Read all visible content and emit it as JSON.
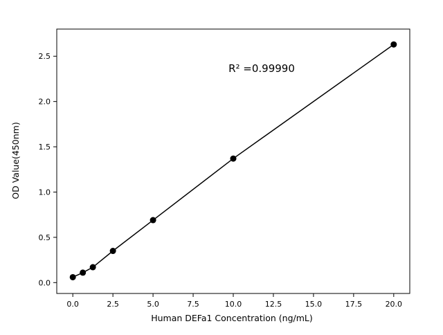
{
  "figure": {
    "background": "#ffffff"
  },
  "chart_data": {
    "type": "scatter",
    "x": [
      0,
      0.625,
      1.25,
      2.5,
      5,
      10,
      20
    ],
    "y": [
      0.06,
      0.11,
      0.17,
      0.35,
      0.69,
      1.37,
      2.63
    ],
    "title": "",
    "xlabel": "Human DEFa1 Concentration (ng/mL)",
    "ylabel": "OD Value(450nm)",
    "annotation": "R² =0.99990",
    "xlim": [
      -1,
      21
    ],
    "ylim": [
      -0.12,
      2.8
    ],
    "x_ticks": [
      0.0,
      2.5,
      5.0,
      7.5,
      10.0,
      12.5,
      15.0,
      17.5,
      20.0
    ],
    "x_tick_labels": [
      "0.0",
      "2.5",
      "5.0",
      "7.5",
      "10.0",
      "12.5",
      "15.0",
      "17.5",
      "20.0"
    ],
    "y_ticks": [
      0.0,
      0.5,
      1.0,
      1.5,
      2.0,
      2.5
    ],
    "y_tick_labels": [
      "0.0",
      "0.5",
      "1.0",
      "1.5",
      "2.0",
      "2.5"
    ],
    "grid": false,
    "line": true,
    "legend": null,
    "marker_color": "#000000",
    "line_color": "#000000",
    "axis_color": "#000000"
  }
}
